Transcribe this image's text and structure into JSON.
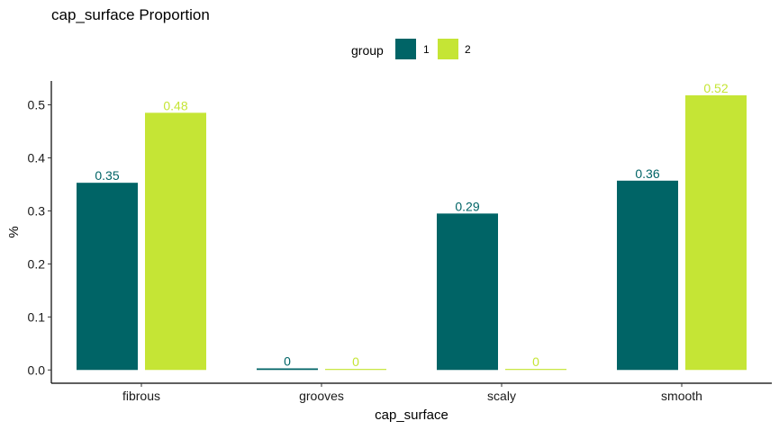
{
  "chart_data": {
    "type": "bar",
    "title": "cap_surface Proportion",
    "xlabel": "cap_surface",
    "ylabel": "%",
    "categories": [
      "fibrous",
      "grooves",
      "scaly",
      "smooth"
    ],
    "series": [
      {
        "name": "1",
        "values": [
          0.353,
          0.003,
          0.295,
          0.357
        ],
        "labels": [
          "0.35",
          "0",
          "0.29",
          "0.36"
        ],
        "color": "#006466"
      },
      {
        "name": "2",
        "values": [
          0.485,
          0.002,
          0.002,
          0.518
        ],
        "labels": [
          "0.48",
          "0",
          "0",
          "0.52"
        ],
        "color": "#c5e535"
      }
    ],
    "legend": {
      "title": "group",
      "position": "top"
    },
    "ylim": [
      -0.025,
      0.545
    ],
    "yticks": [
      0.0,
      0.1,
      0.2,
      0.3,
      0.4,
      0.5
    ],
    "ytick_labels": [
      "0.0",
      "0.1",
      "0.2",
      "0.3",
      "0.4",
      "0.5"
    ],
    "grid": false
  }
}
